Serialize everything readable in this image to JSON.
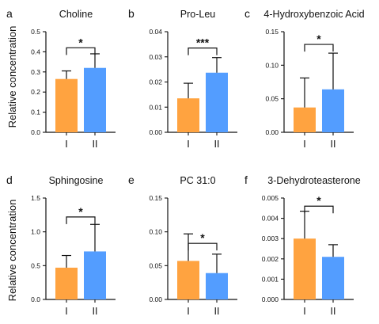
{
  "ylabel": "Relative concentration",
  "colors": {
    "group_I": "#FFA340",
    "group_II": "#539DFF",
    "axis": "#111111"
  },
  "chart_data": [
    {
      "type": "bar",
      "panel": "a",
      "title": "Choline",
      "categories": [
        "I",
        "II"
      ],
      "values": [
        0.265,
        0.32
      ],
      "errors": [
        0.04,
        0.07
      ],
      "ylim": [
        0,
        0.5
      ],
      "yticks": [
        "0.0",
        "0.1",
        "0.2",
        "0.3",
        "0.4",
        "0.5"
      ],
      "significance": "*",
      "sig_level": 0.42,
      "grid": false
    },
    {
      "type": "bar",
      "panel": "b",
      "title": "Pro-Leu",
      "categories": [
        "I",
        "II"
      ],
      "values": [
        0.0135,
        0.0237
      ],
      "errors": [
        0.006,
        0.006
      ],
      "ylim": [
        0,
        0.04
      ],
      "yticks": [
        "0.00",
        "0.01",
        "0.02",
        "0.03",
        "0.04"
      ],
      "significance": "***",
      "sig_level": 0.0335,
      "grid": false
    },
    {
      "type": "bar",
      "panel": "c",
      "title": "4-Hydroxybenzoic Acid",
      "categories": [
        "I",
        "II"
      ],
      "values": [
        0.037,
        0.064
      ],
      "errors": [
        0.044,
        0.054
      ],
      "ylim": [
        0,
        0.15
      ],
      "yticks": [
        "0.00",
        "0.05",
        "0.10",
        "0.15"
      ],
      "significance": "*",
      "sig_level": 0.131,
      "grid": false
    },
    {
      "type": "bar",
      "panel": "d",
      "title": "Sphingosine",
      "categories": [
        "I",
        "II"
      ],
      "values": [
        0.47,
        0.71
      ],
      "errors": [
        0.18,
        0.4
      ],
      "ylim": [
        0,
        1.5
      ],
      "yticks": [
        "0.0",
        "0.5",
        "1.0",
        "1.5"
      ],
      "significance": "*",
      "sig_level": 1.22,
      "grid": false
    },
    {
      "type": "bar",
      "panel": "e",
      "title": "PC 31:0",
      "categories": [
        "I",
        "II"
      ],
      "values": [
        0.057,
        0.039
      ],
      "errors": [
        0.04,
        0.028
      ],
      "ylim": [
        0,
        0.15
      ],
      "yticks": [
        "0.00",
        "0.05",
        "0.10",
        "0.15"
      ],
      "significance": "*",
      "sig_level": 0.083,
      "grid": false
    },
    {
      "type": "bar",
      "panel": "f",
      "title": "3-Dehydroteasterone",
      "categories": [
        "I",
        "II"
      ],
      "values": [
        0.003,
        0.0021
      ],
      "errors": [
        0.00135,
        0.0006
      ],
      "ylim": [
        0,
        0.005
      ],
      "yticks": [
        "0.000",
        "0.001",
        "0.002",
        "0.003",
        "0.004",
        "0.005"
      ],
      "significance": "*",
      "sig_level": 0.0046,
      "grid": false
    }
  ]
}
